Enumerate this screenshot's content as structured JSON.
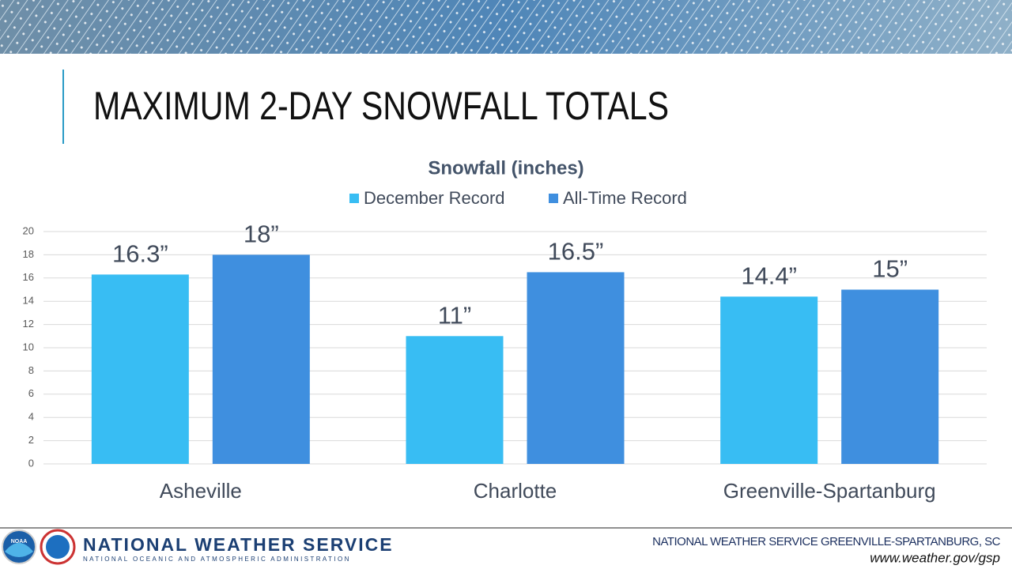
{
  "slide_title": "MAXIMUM 2-DAY SNOWFALL TOTALS",
  "chart_data": {
    "type": "bar",
    "title": "Snowfall (inches)",
    "categories": [
      "Asheville",
      "Charlotte",
      "Greenville-Spartanburg"
    ],
    "series": [
      {
        "name": "December Record",
        "color": "#38bdf3",
        "values": [
          16.3,
          11,
          14.4
        ],
        "value_labels": [
          "16.3”",
          "11”",
          "14.4”"
        ]
      },
      {
        "name": "All-Time Record",
        "color": "#3f8fdf",
        "values": [
          18,
          16.5,
          15
        ],
        "value_labels": [
          "18”",
          "16.5”",
          "15”"
        ]
      }
    ],
    "ylim": [
      0,
      20
    ],
    "yticks": [
      0,
      2,
      4,
      6,
      8,
      10,
      12,
      14,
      16,
      18,
      20
    ],
    "grid": true,
    "legend": "top"
  },
  "footer": {
    "logo_text": "NOAA",
    "agency": "NATIONAL WEATHER SERVICE",
    "parent": "NATIONAL OCEANIC AND ATMOSPHERIC ADMINISTRATION",
    "office": "NATIONAL WEATHER SERVICE GREENVILLE-SPARTANBURG, SC",
    "url": "www.weather.gov/gsp"
  }
}
